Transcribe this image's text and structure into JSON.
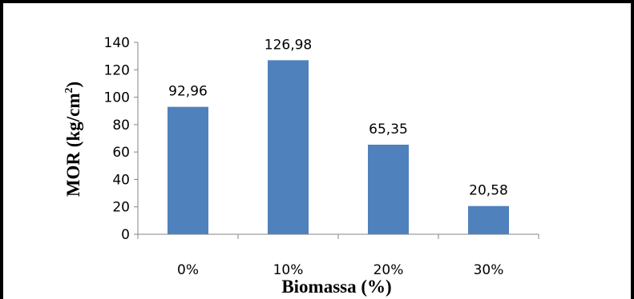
{
  "chart_data": {
    "type": "bar",
    "categories": [
      "0%",
      "10%",
      "20%",
      "30%"
    ],
    "values": [
      92.96,
      126.98,
      65.35,
      20.58
    ],
    "data_labels": [
      "92,96",
      "126,98",
      "65,35",
      "20,58"
    ],
    "title": "",
    "xlabel": "Biomassa (%)",
    "ylabel_main": "MOR (kg/cm",
    "ylabel_sup": "2",
    "ylabel_close": ")",
    "ylim": [
      0,
      140
    ],
    "yticks": [
      "0",
      "20",
      "40",
      "60",
      "80",
      "100",
      "120",
      "140"
    ],
    "grid": false,
    "legend": "none",
    "bar_color": "#4f81bd"
  }
}
